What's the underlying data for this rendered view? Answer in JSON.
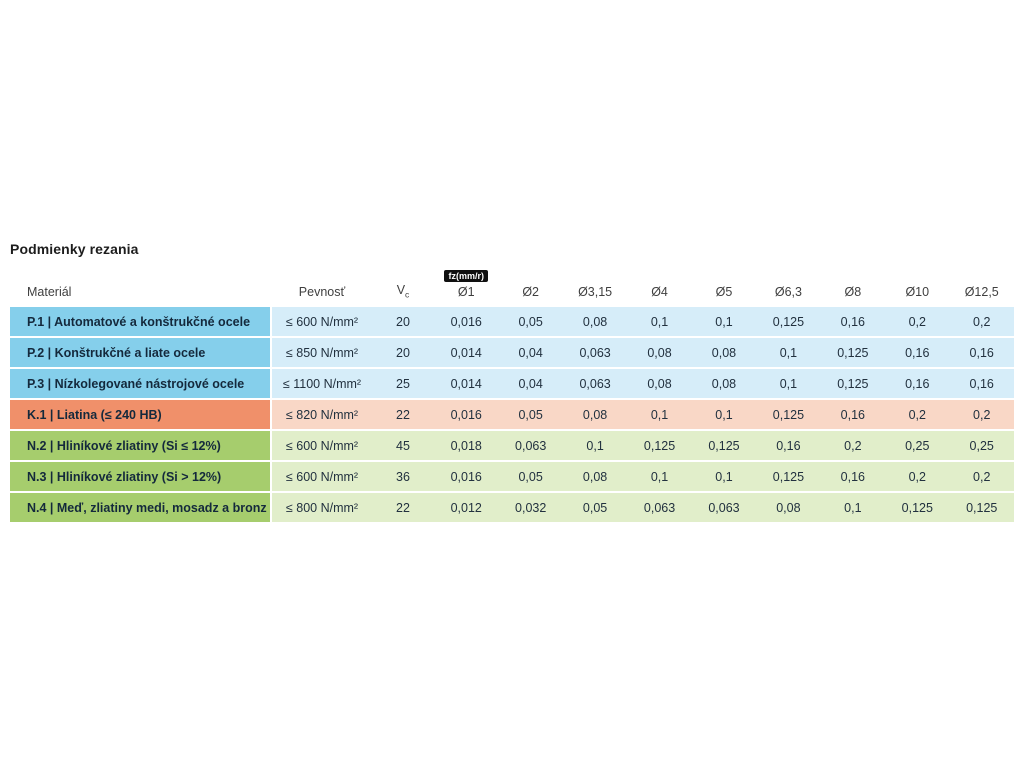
{
  "page": {
    "title": "Podmienky rezania"
  },
  "table": {
    "badge": "fz(mm/r)",
    "headers": {
      "material": "Materiál",
      "strength": "Pevnosť",
      "vc_main": "V",
      "vc_sub": "c",
      "diameters": [
        "Ø1",
        "Ø2",
        "Ø3,15",
        "Ø4",
        "Ø5",
        "Ø6,3",
        "Ø8",
        "Ø10",
        "Ø12,5"
      ]
    },
    "colors": {
      "blue_label": "#85cfeb",
      "blue_tint": "#d6edf9",
      "orange_label": "#f0906a",
      "orange_tint": "#f9d7c6",
      "green_label": "#a6cd6d",
      "green_tint": "#e1eeca",
      "badge_bg": "#101010",
      "badge_text": "#ffffff"
    },
    "rows": [
      {
        "material": "P.1 | Automatové a konštrukčné ocele",
        "strength": "≤ 600 N/mm²",
        "vc": "20",
        "values": [
          "0,016",
          "0,05",
          "0,08",
          "0,1",
          "0,1",
          "0,125",
          "0,16",
          "0,2",
          "0,2"
        ],
        "label_color": "#85cfeb",
        "tint_color": "#d6edf9"
      },
      {
        "material": "P.2 | Konštrukčné a liate ocele",
        "strength": "≤ 850 N/mm²",
        "vc": "20",
        "values": [
          "0,014",
          "0,04",
          "0,063",
          "0,08",
          "0,08",
          "0,1",
          "0,125",
          "0,16",
          "0,16"
        ],
        "label_color": "#85cfeb",
        "tint_color": "#d6edf9"
      },
      {
        "material": "P.3 | Nízkolegované nástrojové ocele",
        "strength": "≤ 1100 N/mm²",
        "vc": "25",
        "values": [
          "0,014",
          "0,04",
          "0,063",
          "0,08",
          "0,08",
          "0,1",
          "0,125",
          "0,16",
          "0,16"
        ],
        "label_color": "#85cfeb",
        "tint_color": "#d6edf9"
      },
      {
        "material": "K.1 | Liatina (≤ 240 HB)",
        "strength": "≤ 820 N/mm²",
        "vc": "22",
        "values": [
          "0,016",
          "0,05",
          "0,08",
          "0,1",
          "0,1",
          "0,125",
          "0,16",
          "0,2",
          "0,2"
        ],
        "label_color": "#f0906a",
        "tint_color": "#f9d7c6"
      },
      {
        "material": "N.2 | Hliníkové zliatiny (Si ≤ 12%)",
        "strength": "≤ 600 N/mm²",
        "vc": "45",
        "values": [
          "0,018",
          "0,063",
          "0,1",
          "0,125",
          "0,125",
          "0,16",
          "0,2",
          "0,25",
          "0,25"
        ],
        "label_color": "#a6cd6d",
        "tint_color": "#e1eeca"
      },
      {
        "material": "N.3 | Hliníkové zliatiny (Si > 12%)",
        "strength": "≤ 600 N/mm²",
        "vc": "36",
        "values": [
          "0,016",
          "0,05",
          "0,08",
          "0,1",
          "0,1",
          "0,125",
          "0,16",
          "0,2",
          "0,2"
        ],
        "label_color": "#a6cd6d",
        "tint_color": "#e1eeca"
      },
      {
        "material": "N.4 | Meď, zliatiny medi, mosadz a bronz",
        "strength": "≤ 800 N/mm²",
        "vc": "22",
        "values": [
          "0,012",
          "0,032",
          "0,05",
          "0,063",
          "0,063",
          "0,08",
          "0,1",
          "0,125",
          "0,125"
        ],
        "label_color": "#a6cd6d",
        "tint_color": "#e1eeca"
      }
    ]
  }
}
